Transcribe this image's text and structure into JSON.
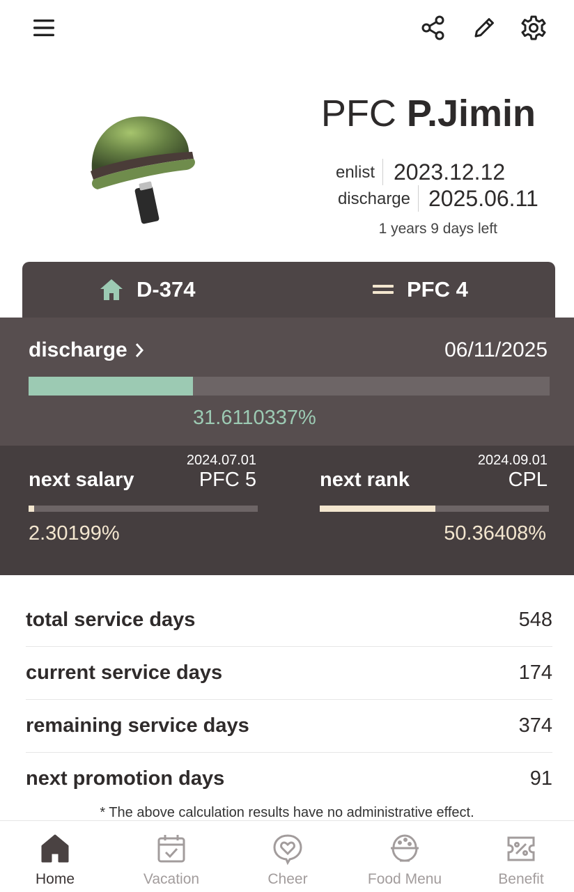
{
  "colors": {
    "accent_green": "#9ccab3",
    "accent_cream": "#f3e6cf",
    "dark_panel": "#4d4546",
    "nav_inactive": "#a29c9c"
  },
  "topbar": {
    "menu_icon": "hamburger-menu-icon",
    "share_icon": "share-icon",
    "edit_icon": "pencil-icon",
    "settings_icon": "gear-icon"
  },
  "profile": {
    "rank": "PFC",
    "name": "P.Jimin",
    "enlist_label": "enlist",
    "enlist_date": "2023.12.12",
    "discharge_label": "discharge",
    "discharge_date": "2025.06.11",
    "time_left": "1 years 9 days left"
  },
  "tabs": {
    "dday": {
      "icon": "home-icon",
      "label": "D-374"
    },
    "rank": {
      "icon": "rank-bars-icon",
      "label": "PFC 4"
    }
  },
  "discharge_progress": {
    "label": "discharge",
    "date": "06/11/2025",
    "percent_text": "31.6110337%",
    "fraction": 0.316110337
  },
  "next_salary": {
    "label": "next salary",
    "date": "2024.07.01",
    "target": "PFC 5",
    "percent_text": "2.30199%",
    "fraction": 0.0230199
  },
  "next_rank": {
    "label": "next rank",
    "date": "2024.09.01",
    "target": "CPL",
    "percent_text": "50.36408%",
    "fraction": 0.5036408
  },
  "stats": [
    {
      "label": "total service days",
      "value": "548"
    },
    {
      "label": "current service days",
      "value": "174"
    },
    {
      "label": "remaining service days",
      "value": "374"
    },
    {
      "label": "next promotion days",
      "value": "91"
    }
  ],
  "disclaimer": "* The above calculation results have no administrative effect.",
  "nav": [
    {
      "label": "Home",
      "icon": "home-icon",
      "active": true
    },
    {
      "label": "Vacation",
      "icon": "calendar-check-icon",
      "active": false
    },
    {
      "label": "Cheer",
      "icon": "heart-bubble-icon",
      "active": false
    },
    {
      "label": "Food Menu",
      "icon": "rice-bowl-icon",
      "active": false
    },
    {
      "label": "Benefit",
      "icon": "coupon-icon",
      "active": false
    }
  ]
}
